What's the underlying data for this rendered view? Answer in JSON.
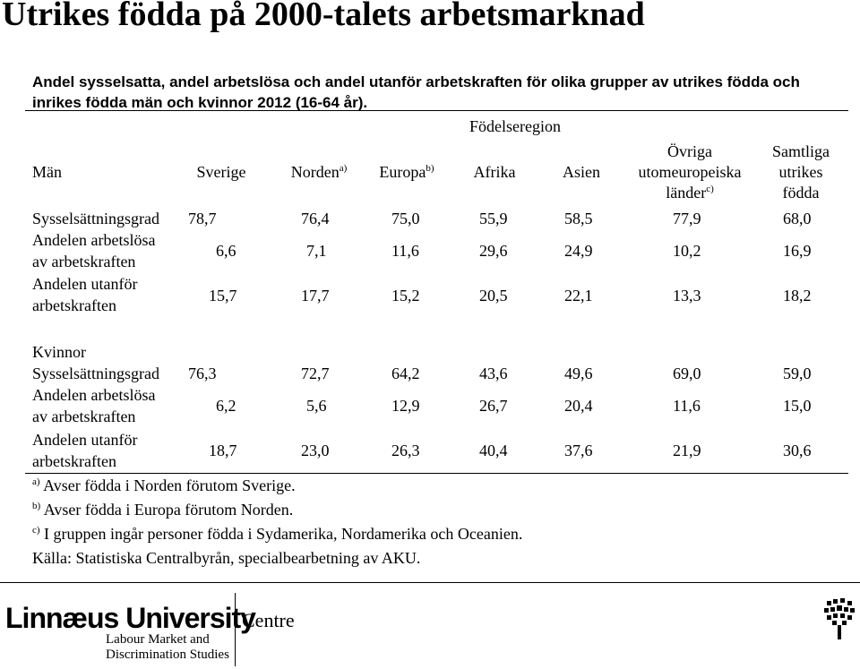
{
  "title": "Utrikes födda på 2000-talets arbetsmarknad",
  "subtitle": "Andel sysselsatta, andel arbetslösa och andel utanför arbetskraften för olika grupper av utrikes födda och inrikes födda män och kvinnor 2012 (16-64 år).",
  "table": {
    "group_header": "Födelseregion",
    "row_header_men": "Män",
    "columns": {
      "sverige": "Sverige",
      "norden": "Norden",
      "norden_note": "a)",
      "europa": "Europa",
      "europa_note": "b)",
      "afrika": "Afrika",
      "asien": "Asien",
      "ovriga_1": "Övriga",
      "ovriga_2": "utomeuropeiska",
      "ovriga_3": "länder",
      "ovriga_note": "c)",
      "samtliga_1": "Samtliga",
      "samtliga_2": "utrikes",
      "samtliga_3": "födda"
    },
    "men": {
      "rows": [
        {
          "label1": "Sysselsättningsgrad",
          "label2": "",
          "values": [
            "78,7",
            "76,4",
            "75,0",
            "55,9",
            "58,5",
            "77,9",
            "68,0"
          ]
        },
        {
          "label1": "Andelen arbetslösa",
          "label2": "av arbetskraften",
          "values": [
            "6,6",
            "7,1",
            "11,6",
            "29,6",
            "24,9",
            "10,2",
            "16,9"
          ]
        },
        {
          "label1": "Andelen utanför",
          "label2": "arbetskraften",
          "values": [
            "15,7",
            "17,7",
            "15,2",
            "20,5",
            "22,1",
            "13,3",
            "18,2"
          ]
        }
      ]
    },
    "women_header": "Kvinnor",
    "women": {
      "rows": [
        {
          "label1": "Sysselsättningsgrad",
          "label2": "",
          "values": [
            "76,3",
            "72,7",
            "64,2",
            "43,6",
            "49,6",
            "69,0",
            "59,0"
          ]
        },
        {
          "label1": "Andelen arbetslösa",
          "label2": "av arbetskraften",
          "values": [
            "6,2",
            "5,6",
            "12,9",
            "26,7",
            "20,4",
            "11,6",
            "15,0"
          ]
        },
        {
          "label1": "Andelen utanför",
          "label2": "arbetskraften",
          "values": [
            "18,7",
            "23,0",
            "26,3",
            "40,4",
            "37,6",
            "21,9",
            "30,6"
          ]
        }
      ]
    }
  },
  "notes": [
    {
      "mark": "a)",
      "text": "Avser födda i Norden förutom Sverige."
    },
    {
      "mark": "b)",
      "text": "Avser födda i Europa förutom Norden."
    },
    {
      "mark": "c)",
      "text": "I gruppen ingår personer födda i Sydamerika, Nordamerika och Oceanien."
    }
  ],
  "source": "Källa: Statistiska Centralbyrån, specialbearbetning av AKU.",
  "footer": {
    "university": "Linnæus University",
    "centre": "Centre",
    "sub1": "Labour Market and",
    "sub2": "Discrimination Studies",
    "logo_icon": "tree-icon"
  }
}
